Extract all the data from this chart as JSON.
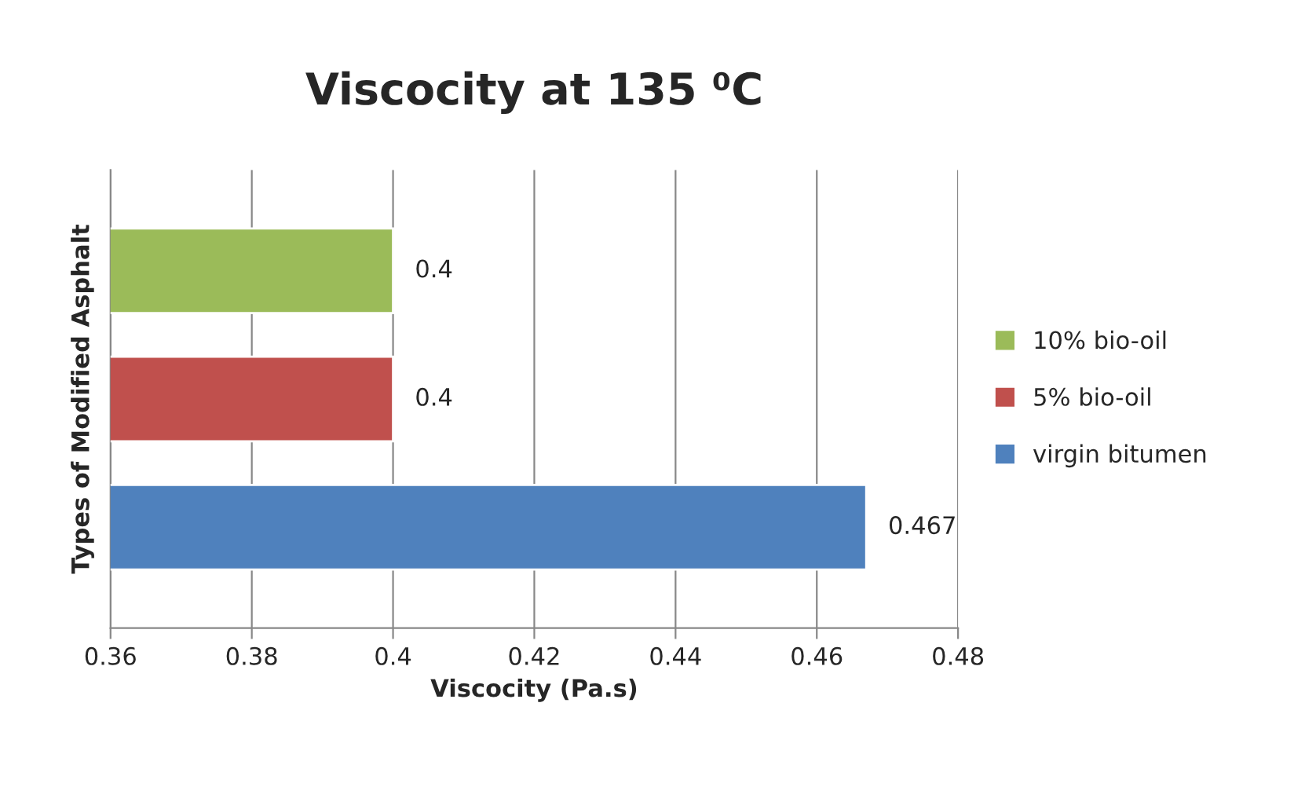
{
  "chart_data": {
    "type": "bar",
    "orientation": "horizontal",
    "title": "Viscocity at 135 ⁰C",
    "xlabel": "Viscocity (Pa.s)",
    "ylabel": "Types of Modified Asphalt",
    "categories": [
      null
    ],
    "series": [
      {
        "name": "virgin bitumen",
        "color": "#4f81bd",
        "values": [
          0.467
        ]
      },
      {
        "name": "5% bio-oil",
        "color": "#c0504d",
        "values": [
          0.4
        ]
      },
      {
        "name": "10% bio-oil",
        "color": "#9bbb59",
        "values": [
          0.4
        ]
      }
    ],
    "xlim": [
      0.36,
      0.48
    ],
    "xticks": [
      0.36,
      0.38,
      0.4,
      0.42,
      0.44,
      0.46,
      0.48
    ],
    "grid": "x",
    "legend": "right",
    "data_labels": true
  }
}
